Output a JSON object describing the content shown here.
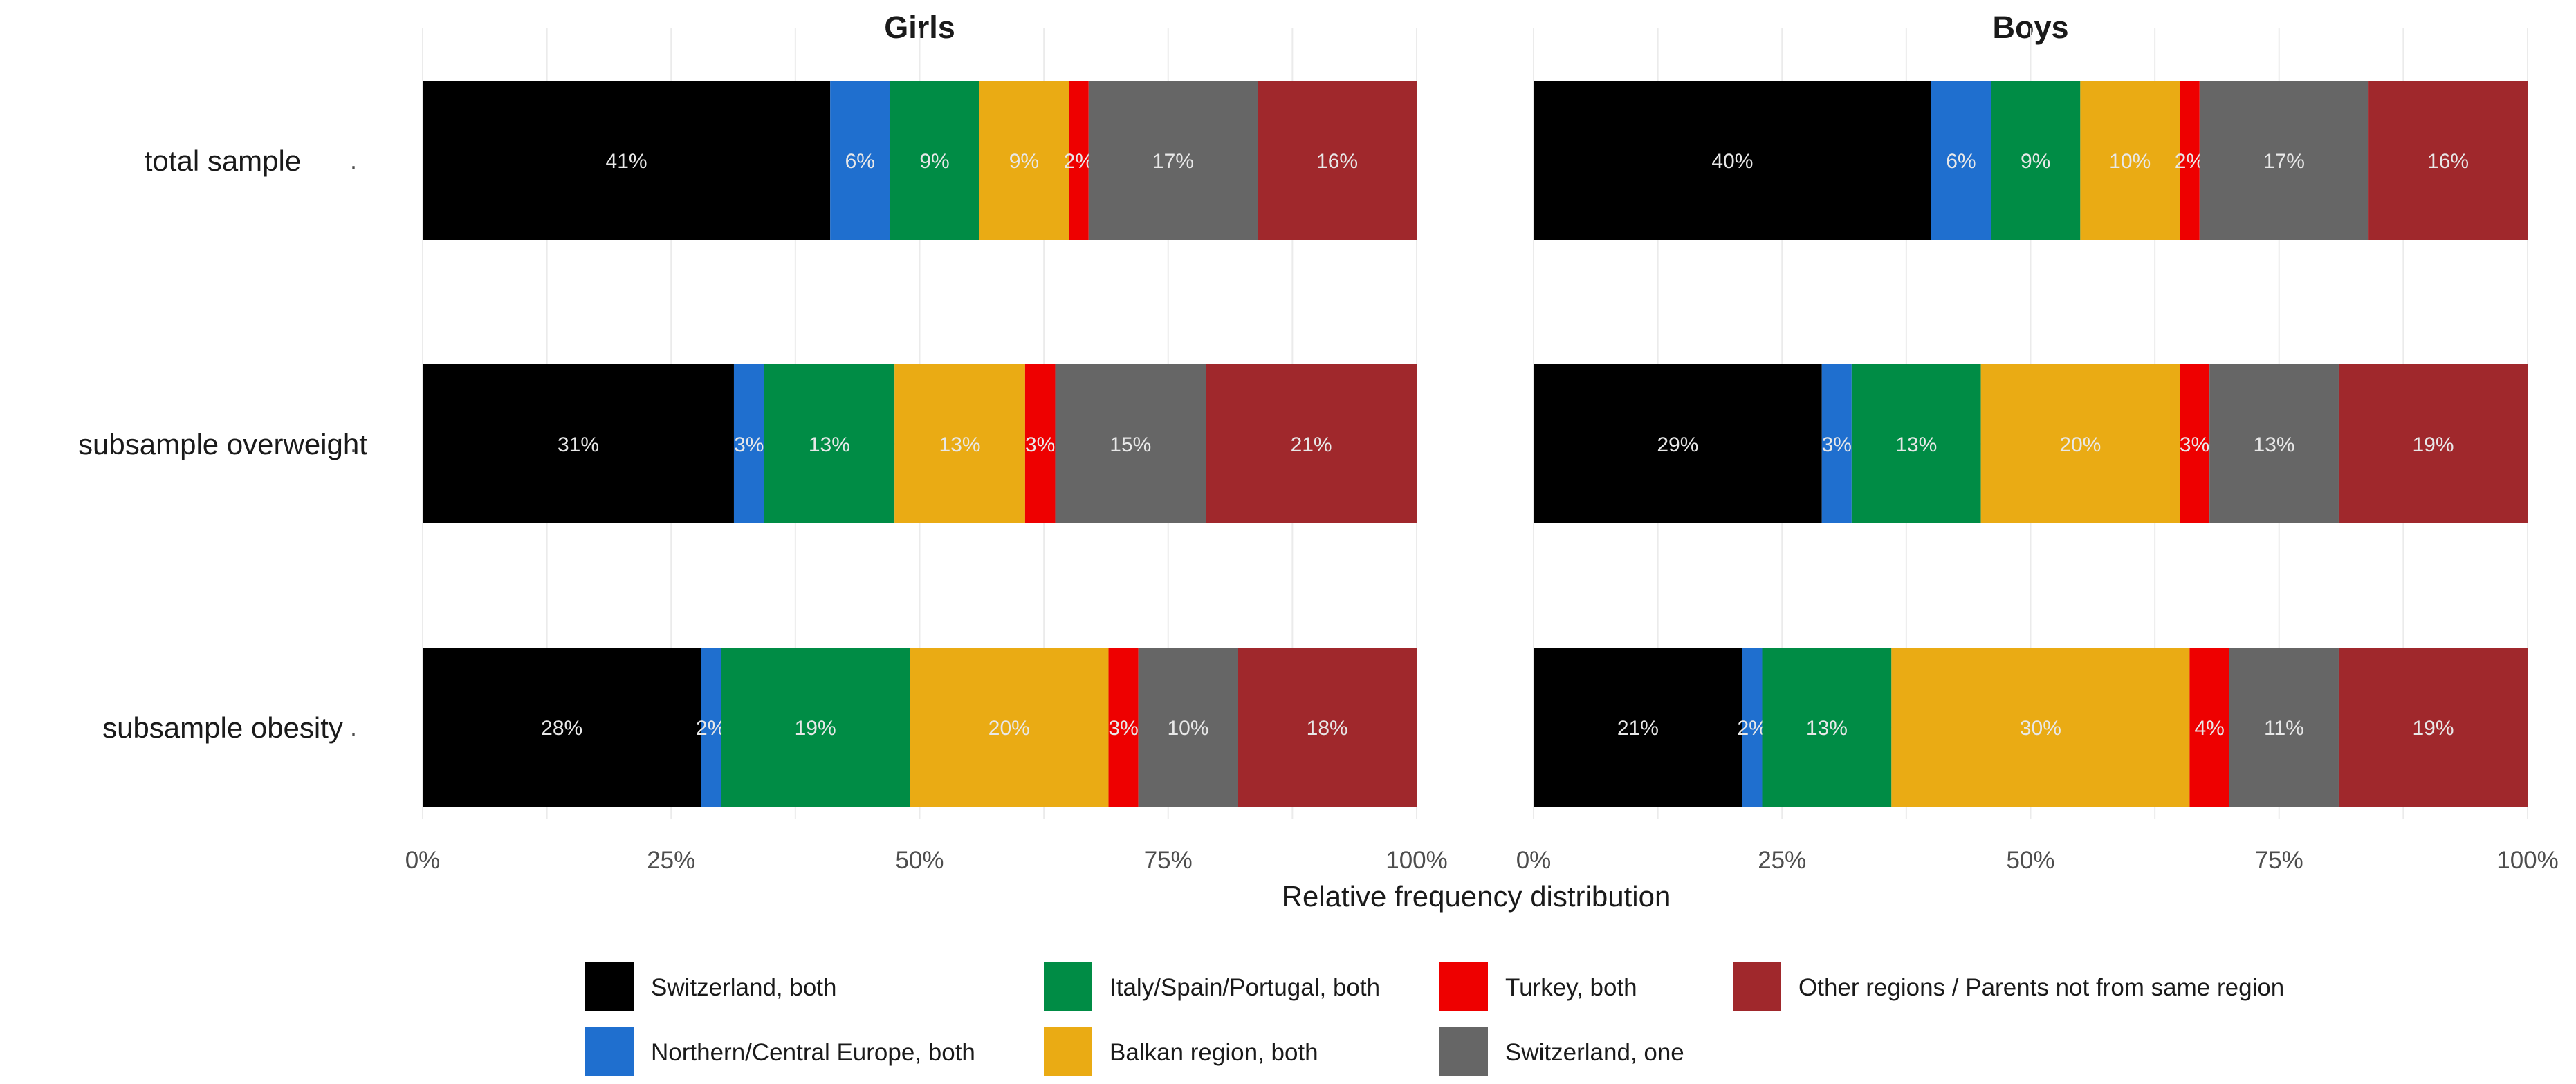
{
  "chart_data": {
    "type": "bar",
    "stacked": true,
    "orientation": "horizontal",
    "xlabel": "Relative frequency distribution",
    "xlim": [
      0,
      1
    ],
    "x_ticks": [
      "0%",
      "25%",
      "50%",
      "75%",
      "100%"
    ],
    "grid": true,
    "legend_position": "bottom",
    "categories": [
      "total sample",
      "subsample overweight",
      "subsample obesity"
    ],
    "series": [
      {
        "name": "Switzerland, both",
        "color": "#000000"
      },
      {
        "name": "Northern/Central Europe, both",
        "color": "#1f6fcf"
      },
      {
        "name": "Italy/Spain/Portugal, both",
        "color": "#008c45"
      },
      {
        "name": "Balkan region, both",
        "color": "#eaab14"
      },
      {
        "name": "Turkey, both",
        "color": "#ee0000"
      },
      {
        "name": "Switzerland, one",
        "color": "#666666"
      },
      {
        "name": "Other regions / Parents not from same region",
        "color": "#a0282c"
      }
    ],
    "panels": [
      {
        "title": "Girls",
        "values": [
          [
            41,
            6,
            9,
            9,
            2,
            17,
            16
          ],
          [
            31,
            3,
            13,
            13,
            3,
            15,
            21
          ],
          [
            28,
            2,
            19,
            20,
            3,
            10,
            18
          ]
        ]
      },
      {
        "title": "Boys",
        "values": [
          [
            40,
            6,
            9,
            10,
            2,
            17,
            16
          ],
          [
            29,
            3,
            13,
            20,
            3,
            13,
            19
          ],
          [
            21,
            2,
            13,
            30,
            4,
            11,
            19
          ]
        ]
      }
    ]
  }
}
